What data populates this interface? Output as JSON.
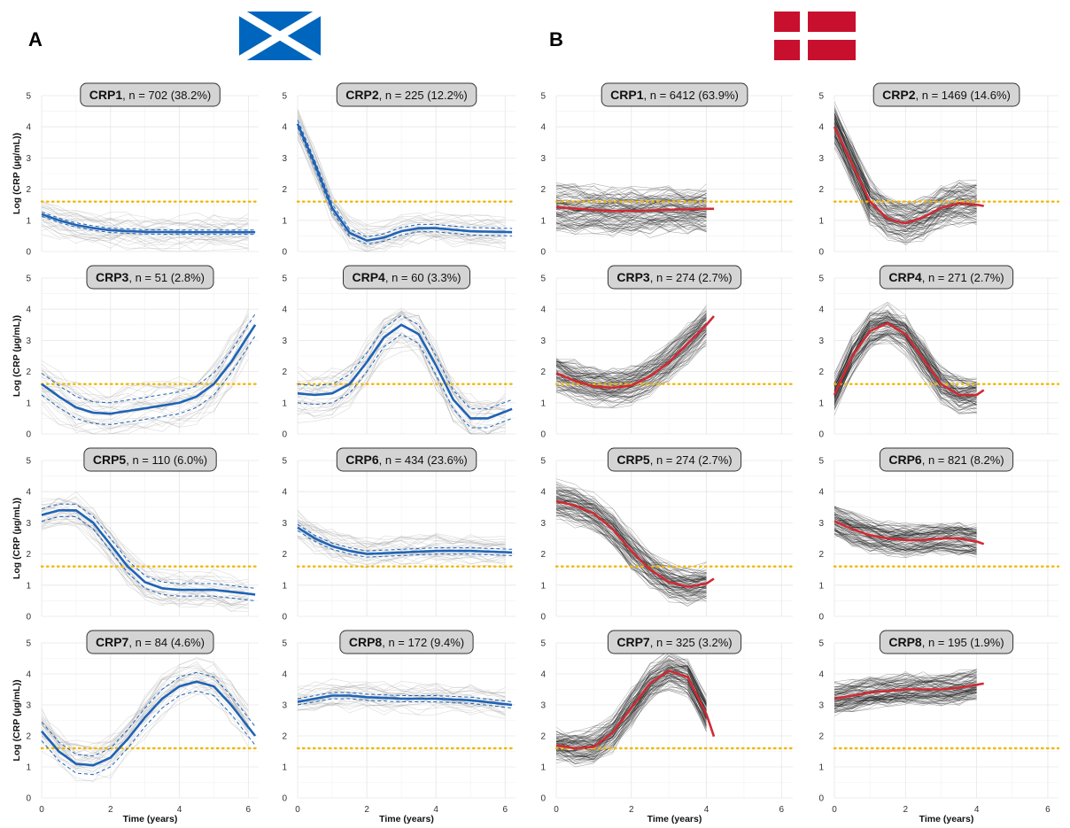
{
  "figure": {
    "panel_labels": [
      "A",
      "B"
    ],
    "flags": [
      {
        "icon": "scotland-flag-icon",
        "colors": {
          "field": "#0065bd",
          "saltire": "#ffffff"
        }
      },
      {
        "icon": "denmark-flag-icon",
        "colors": {
          "field": "#c8102e",
          "cross": "#ffffff"
        }
      }
    ],
    "colors": {
      "scotland_line": "#1f63b5",
      "denmark_line": "#d02a34",
      "threshold": "#f2b705",
      "individual_a": "#9a9a9a",
      "individual_b": "#111111"
    }
  },
  "chart_data": [
    {
      "type": "line",
      "cohort": "A",
      "xlabel": "Time (years)",
      "ylabel": "Log (CRP (µg/mL))",
      "xlim": [
        0,
        6.3
      ],
      "ylim": [
        0,
        5
      ],
      "xticks": [
        0,
        2,
        4,
        6
      ],
      "yticks": [
        0,
        1,
        2,
        3,
        4,
        5
      ],
      "threshold_y": 1.6,
      "grid": true,
      "panels": [
        {
          "name": "CRP1",
          "rest": ", n = 702 (38.2%)",
          "x": [
            0,
            0.5,
            1,
            1.5,
            2,
            3,
            4,
            5,
            6.2
          ],
          "y": [
            1.2,
            1.0,
            0.85,
            0.75,
            0.68,
            0.63,
            0.62,
            0.62,
            0.62
          ],
          "ci": 0.07,
          "spread": 0.6
        },
        {
          "name": "CRP2",
          "rest": ", n = 225 (12.2%)",
          "x": [
            0,
            0.5,
            1,
            1.5,
            2,
            2.5,
            3,
            3.5,
            4,
            5,
            6.2
          ],
          "y": [
            4.1,
            2.8,
            1.4,
            0.6,
            0.35,
            0.45,
            0.65,
            0.75,
            0.75,
            0.65,
            0.62
          ],
          "ci": 0.12,
          "spread": 0.5
        },
        {
          "name": "CRP3",
          "rest": ", n = 51 (2.8%)",
          "x": [
            0,
            0.5,
            1,
            1.5,
            2,
            3,
            4,
            4.5,
            5,
            5.5,
            6.2
          ],
          "y": [
            1.6,
            1.2,
            0.85,
            0.68,
            0.65,
            0.82,
            1.0,
            1.2,
            1.6,
            2.3,
            3.5
          ],
          "ci": 0.35,
          "spread": 0.8
        },
        {
          "name": "CRP4",
          "rest": ", n = 60 (3.3%)",
          "x": [
            0,
            0.5,
            1,
            1.5,
            2,
            2.5,
            3,
            3.5,
            4,
            4.5,
            5,
            5.5,
            6.2
          ],
          "y": [
            1.3,
            1.25,
            1.3,
            1.6,
            2.3,
            3.1,
            3.5,
            3.2,
            2.2,
            1.1,
            0.5,
            0.5,
            0.8
          ],
          "ci": 0.3,
          "spread": 0.8
        },
        {
          "name": "CRP5",
          "rest": ", n = 110 (6.0%)",
          "x": [
            0,
            0.5,
            1,
            1.5,
            2,
            2.5,
            3,
            3.5,
            4,
            5,
            6.2
          ],
          "y": [
            3.25,
            3.4,
            3.4,
            3.0,
            2.3,
            1.6,
            1.1,
            0.9,
            0.85,
            0.85,
            0.7
          ],
          "ci": 0.2,
          "spread": 0.6
        },
        {
          "name": "CRP6",
          "rest": ", n = 434 (23.6%)",
          "x": [
            0,
            0.5,
            1,
            1.5,
            2,
            3,
            4,
            5,
            6.2
          ],
          "y": [
            2.85,
            2.5,
            2.25,
            2.1,
            2.0,
            2.05,
            2.1,
            2.1,
            2.05
          ],
          "ci": 0.1,
          "spread": 0.5
        },
        {
          "name": "CRP7",
          "rest": ", n = 84 (4.6%)",
          "x": [
            0,
            0.5,
            1,
            1.5,
            2,
            2.5,
            3,
            3.5,
            4,
            4.5,
            5,
            5.5,
            6.2
          ],
          "y": [
            2.15,
            1.5,
            1.1,
            1.05,
            1.3,
            1.9,
            2.6,
            3.2,
            3.6,
            3.75,
            3.6,
            3.0,
            2.0
          ],
          "ci": 0.3,
          "spread": 0.7
        },
        {
          "name": "CRP8",
          "rest": ", n = 172 (9.4%)",
          "x": [
            0,
            0.5,
            1,
            1.5,
            2,
            3,
            4,
            5,
            6.2
          ],
          "y": [
            3.1,
            3.2,
            3.3,
            3.3,
            3.25,
            3.2,
            3.2,
            3.15,
            3.0
          ],
          "ci": 0.1,
          "spread": 0.5
        }
      ]
    },
    {
      "type": "line",
      "cohort": "B",
      "xlabel": "Time (years)",
      "ylabel": "",
      "xlim": [
        0,
        6.3
      ],
      "ylim": [
        0,
        5
      ],
      "xticks": [
        0,
        2,
        4,
        6
      ],
      "yticks": [
        0,
        1,
        2,
        3,
        4,
        5
      ],
      "threshold_y": 1.6,
      "grid": true,
      "panels": [
        {
          "name": "CRP1",
          "rest": ", n = 6412 (63.9%)",
          "x": [
            0,
            0.5,
            1,
            1.5,
            2,
            2.5,
            3,
            3.5,
            4,
            4.25
          ],
          "y": [
            1.42,
            1.38,
            1.33,
            1.3,
            1.3,
            1.32,
            1.34,
            1.35,
            1.37,
            1.37
          ],
          "spread": 0.75
        },
        {
          "name": "CRP2",
          "rest": ", n = 1469 (14.6%)",
          "x": [
            0,
            0.5,
            1,
            1.5,
            2,
            2.5,
            3,
            3.5,
            4,
            4.25
          ],
          "y": [
            4.0,
            2.8,
            1.6,
            1.05,
            0.9,
            1.1,
            1.4,
            1.55,
            1.5,
            1.45
          ],
          "spread": 0.7
        },
        {
          "name": "CRP3",
          "rest": ", n = 274 (2.7%)",
          "x": [
            0,
            0.5,
            1,
            1.5,
            2,
            2.5,
            3,
            3.5,
            4,
            4.25
          ],
          "y": [
            1.95,
            1.7,
            1.52,
            1.48,
            1.55,
            1.85,
            2.3,
            2.9,
            3.5,
            3.85
          ],
          "spread": 0.6
        },
        {
          "name": "CRP4",
          "rest": ", n = 271 (2.7%)",
          "x": [
            0,
            0.5,
            1,
            1.5,
            2,
            2.5,
            3,
            3.5,
            4,
            4.25
          ],
          "y": [
            1.25,
            2.5,
            3.3,
            3.55,
            3.2,
            2.4,
            1.6,
            1.25,
            1.25,
            1.45
          ],
          "spread": 0.6
        },
        {
          "name": "CRP5",
          "rest": ", n = 274 (2.7%)",
          "x": [
            0,
            0.5,
            1,
            1.5,
            2,
            2.5,
            3,
            3.5,
            4,
            4.25
          ],
          "y": [
            3.7,
            3.55,
            3.3,
            2.8,
            2.1,
            1.5,
            1.1,
            0.95,
            1.05,
            1.25
          ],
          "spread": 0.6
        },
        {
          "name": "CRP6",
          "rest": ", n = 821 (8.2%)",
          "x": [
            0,
            0.5,
            1,
            1.5,
            2,
            2.5,
            3,
            3.5,
            4,
            4.25
          ],
          "y": [
            3.05,
            2.8,
            2.6,
            2.5,
            2.45,
            2.45,
            2.5,
            2.5,
            2.4,
            2.3
          ],
          "spread": 0.5
        },
        {
          "name": "CRP7",
          "rest": ", n = 325 (3.2%)",
          "x": [
            0,
            0.5,
            1,
            1.5,
            2,
            2.5,
            3,
            3.5,
            4,
            4.25
          ],
          "y": [
            1.7,
            1.6,
            1.65,
            2.1,
            2.9,
            3.7,
            4.1,
            3.9,
            2.7,
            1.8
          ],
          "spread": 0.6
        },
        {
          "name": "CRP8",
          "rest": ", n = 195 (1.9%)",
          "x": [
            0,
            0.5,
            1,
            1.5,
            2,
            2.5,
            3,
            3.5,
            4,
            4.25
          ],
          "y": [
            3.2,
            3.3,
            3.4,
            3.45,
            3.5,
            3.5,
            3.5,
            3.55,
            3.65,
            3.7
          ],
          "spread": 0.5
        }
      ]
    }
  ]
}
